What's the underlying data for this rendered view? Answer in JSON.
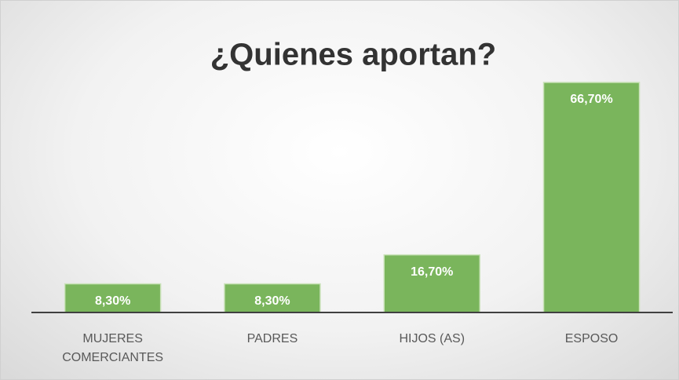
{
  "chart_data": {
    "type": "bar",
    "title": "¿Quienes aportan?",
    "categories": [
      "MUJERES COMERCIANTES",
      "PADRES",
      "HIJOS (AS)",
      "ESPOSO"
    ],
    "values": [
      8.3,
      8.3,
      16.7,
      66.7
    ],
    "value_labels": [
      "8,30%",
      "8,30%",
      "16,70%",
      "66,70%"
    ],
    "color": "#7ab55c"
  }
}
